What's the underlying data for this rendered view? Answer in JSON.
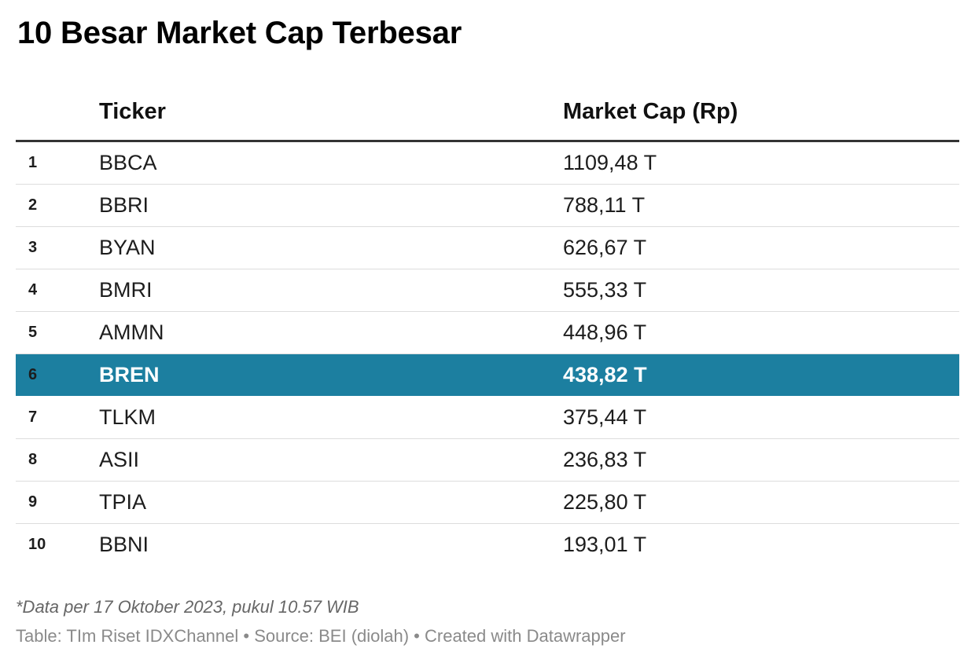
{
  "title": "10 Besar Market Cap Terbesar",
  "chart_data": {
    "type": "table",
    "title": "10 Besar Market Cap Terbesar",
    "columns": [
      "",
      "Ticker",
      "Market Cap (Rp)"
    ],
    "rows": [
      {
        "rank": "1",
        "ticker": "BBCA",
        "cap": "1109,48 T",
        "value": 1109.48
      },
      {
        "rank": "2",
        "ticker": "BBRI",
        "cap": "788,11 T",
        "value": 788.11
      },
      {
        "rank": "3",
        "ticker": "BYAN",
        "cap": "626,67 T",
        "value": 626.67
      },
      {
        "rank": "4",
        "ticker": "BMRI",
        "cap": "555,33 T",
        "value": 555.33
      },
      {
        "rank": "5",
        "ticker": "AMMN",
        "cap": "448,96 T",
        "value": 448.96
      },
      {
        "rank": "6",
        "ticker": "BREN",
        "cap": "438,82 T",
        "value": 438.82,
        "highlighted": true
      },
      {
        "rank": "7",
        "ticker": "TLKM",
        "cap": "375,44 T",
        "value": 375.44
      },
      {
        "rank": "8",
        "ticker": "ASII",
        "cap": "236,83 T",
        "value": 236.83
      },
      {
        "rank": "9",
        "ticker": "TPIA",
        "cap": "225,80 T",
        "value": 225.8
      },
      {
        "rank": "10",
        "ticker": "BBNI",
        "cap": "193,01 T",
        "value": 193.01
      }
    ],
    "highlight_color": "#1c7fa0"
  },
  "note": "*Data per 17 Oktober 2023, pukul 10.57 WIB",
  "footer": "Table: TIm Riset IDXChannel • Source: BEI (diolah) • Created with Datawrapper"
}
